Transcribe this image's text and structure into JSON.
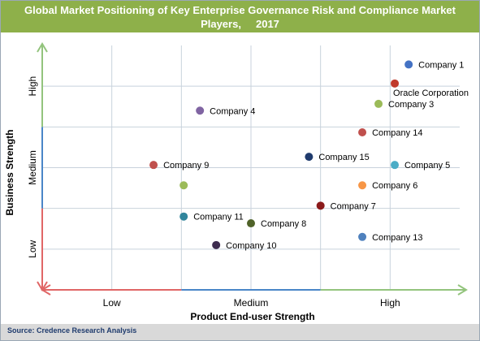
{
  "chart_data": {
    "type": "scatter",
    "title": "Global Market Positioning of Key Enterprise Governance Risk and Compliance Market Players,     2017",
    "xlabel": "Product End-user Strength",
    "ylabel": "Business Strength",
    "xlim": [
      0,
      9
    ],
    "ylim": [
      0,
      9
    ],
    "x_ticks": [
      {
        "label": "Low",
        "value": 1.5
      },
      {
        "label": "Medium",
        "value": 4.5
      },
      {
        "label": "High",
        "value": 7.5
      }
    ],
    "y_ticks": [
      {
        "label": "Low",
        "value": 1.5
      },
      {
        "label": "Medium",
        "value": 4.5
      },
      {
        "label": "High",
        "value": 7.5
      }
    ],
    "grid": true,
    "points": [
      {
        "label": "Company 1",
        "x": 7.9,
        "y": 8.3,
        "color": "#4472c4"
      },
      {
        "label": "Oracle Corporation",
        "x": 7.6,
        "y": 7.6,
        "color": "#c0392b"
      },
      {
        "label": "Company 3",
        "x": 7.25,
        "y": 6.85,
        "color": "#9bbb59"
      },
      {
        "label": "Company 4",
        "x": 3.4,
        "y": 6.6,
        "color": "#8064a2"
      },
      {
        "label": "Company 14",
        "x": 6.9,
        "y": 5.8,
        "color": "#c0504d"
      },
      {
        "label": "Company 15",
        "x": 5.75,
        "y": 4.9,
        "color": "#1f3b6d"
      },
      {
        "label": "Company 5",
        "x": 7.6,
        "y": 4.6,
        "color": "#4bacc6"
      },
      {
        "label": "Company 9",
        "x": 2.4,
        "y": 4.6,
        "color": "#c0504d"
      },
      {
        "label": "Company 6",
        "x": 6.9,
        "y": 3.85,
        "color": "#f79646"
      },
      {
        "label": "",
        "x": 3.05,
        "y": 3.85,
        "color": "#9bbb59"
      },
      {
        "label": "Company 7",
        "x": 6.0,
        "y": 3.1,
        "color": "#8b1a1a"
      },
      {
        "label": "Company 11",
        "x": 3.05,
        "y": 2.7,
        "color": "#31859c"
      },
      {
        "label": "Company 8",
        "x": 4.5,
        "y": 2.45,
        "color": "#4f6228"
      },
      {
        "label": "Company 13",
        "x": 6.9,
        "y": 1.95,
        "color": "#4f81bd"
      },
      {
        "label": "Company 10",
        "x": 3.75,
        "y": 1.65,
        "color": "#3d2c4f"
      }
    ]
  },
  "footer": {
    "source": "Source: Credence Research Analysis"
  },
  "colors": {
    "header_bg": "#8eb04a",
    "footer_bg": "#d9d9d9",
    "grid": "#c8d2dc",
    "axis_red": "#e06666",
    "axis_blue": "#4a86c8",
    "axis_green": "#93c47d"
  }
}
